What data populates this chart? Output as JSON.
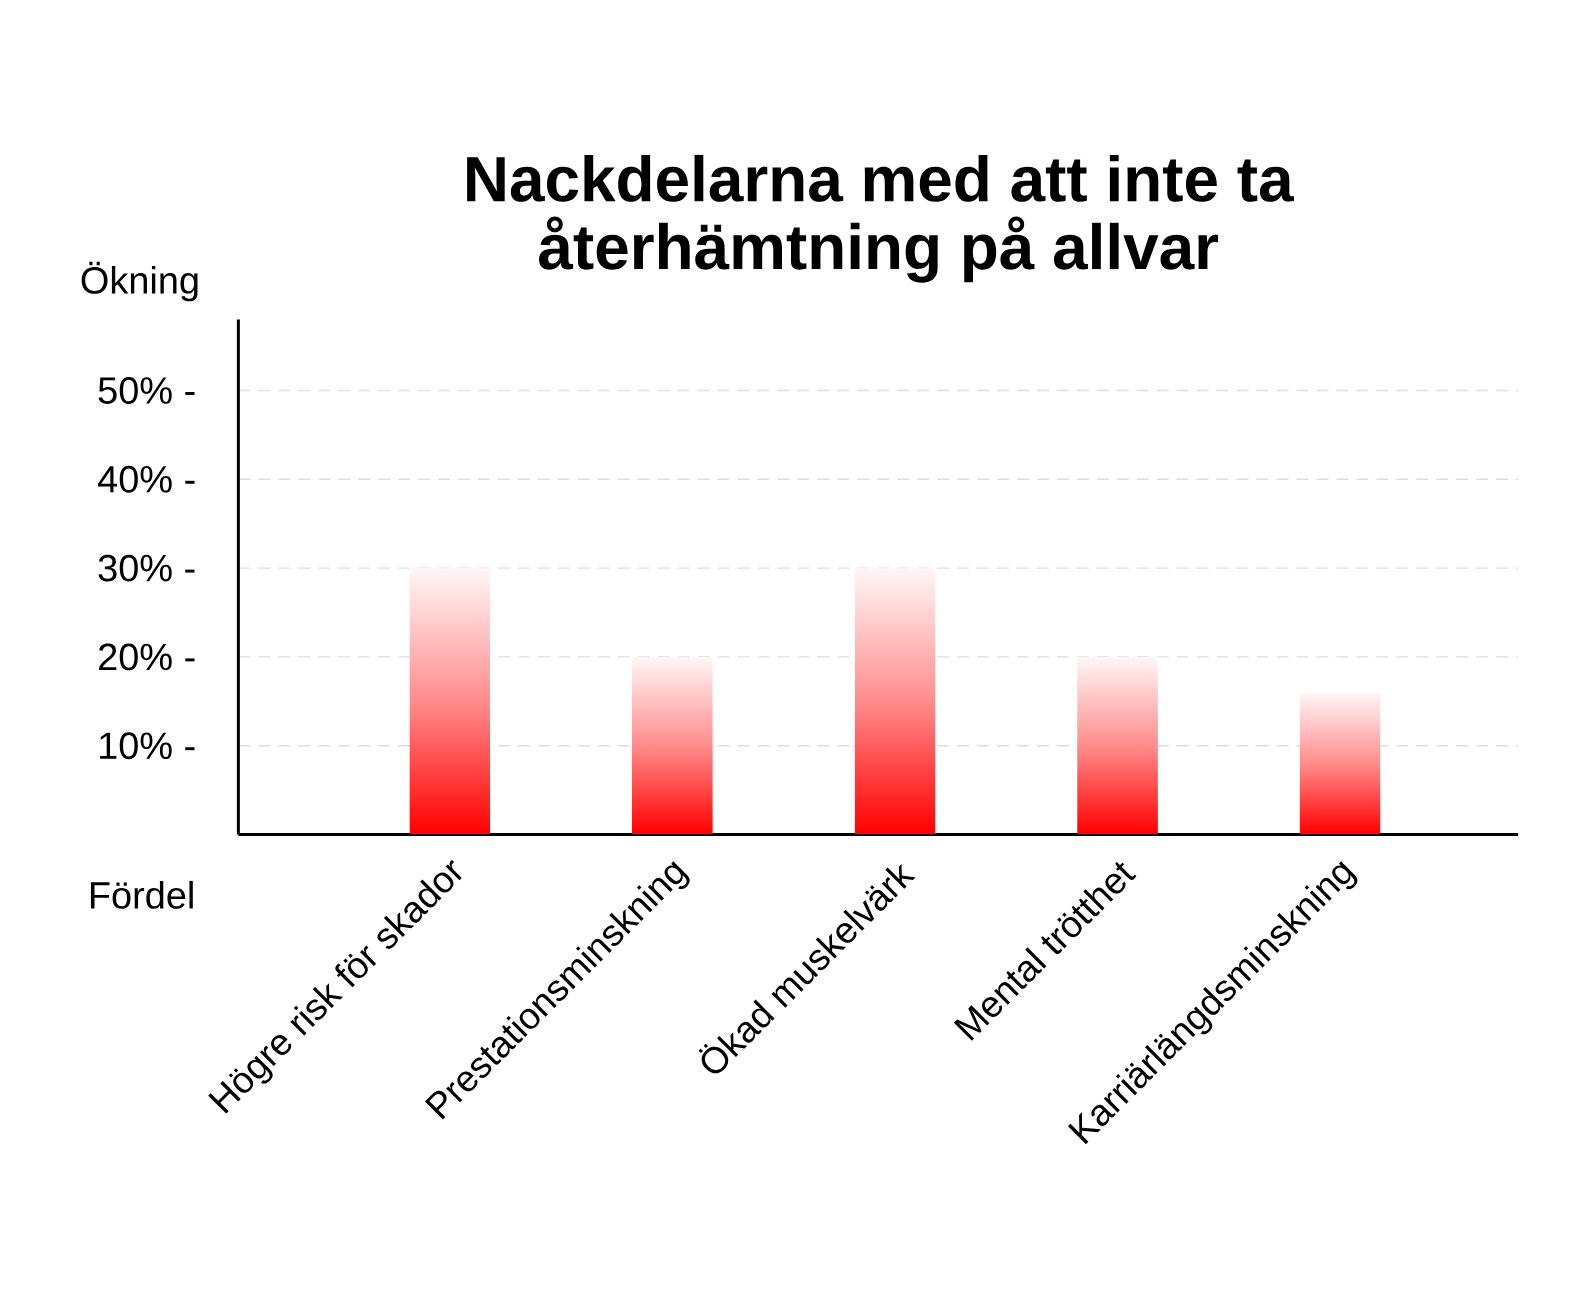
{
  "chart_data": {
    "type": "bar",
    "title": "Nackdelarna med att inte ta återhämtning på allvar",
    "ylabel": "Ökning",
    "xlabel": "Fördel",
    "categories": [
      "Högre risk för skador",
      "Prestationsminskning",
      "Ökad muskelvärk",
      "Mental trötthet",
      "Karriärlängdsminskning"
    ],
    "values": [
      30,
      20,
      30,
      20,
      16
    ],
    "color": "#ff0000",
    "ylim": [
      0,
      58
    ],
    "yticks": [
      {
        "value": 10,
        "label": "10% -"
      },
      {
        "value": 20,
        "label": "20% -"
      },
      {
        "value": 30,
        "label": "30% -"
      },
      {
        "value": 40,
        "label": "40% -"
      },
      {
        "value": 50,
        "label": "50% -"
      }
    ],
    "grid": "y"
  }
}
